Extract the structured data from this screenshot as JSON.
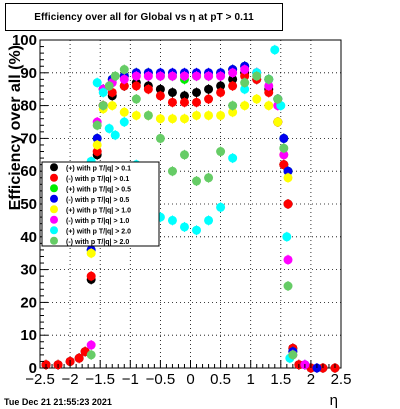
{
  "chart_data": {
    "type": "scatter",
    "title": "Efficiency over all for Global vs   η at pT > 0.11",
    "xlabel": "η",
    "ylabel": "Efficiency over all (%)",
    "xlim": [
      -2.5,
      2.5
    ],
    "ylim": [
      0,
      100
    ],
    "x_ticks": [
      -2.5,
      -2,
      -1.5,
      -1,
      -0.5,
      0,
      0.5,
      1,
      1.5,
      2,
      2.5
    ],
    "x_tick_labels": [
      "−2.5",
      "−2",
      "−1.5",
      "−1",
      "−0.5",
      "0",
      "0.5",
      "1",
      "1.5",
      "2",
      "2.5"
    ],
    "y_ticks": [
      0,
      10,
      20,
      30,
      40,
      50,
      60,
      70,
      80,
      90,
      100
    ],
    "y_tick_labels": [
      "0",
      "10",
      "20",
      "30",
      "40",
      "50",
      "60",
      "70",
      "80",
      "90",
      "100"
    ],
    "grid": true,
    "legend_position": "middle-left",
    "footer": "Tue Dec 21 21:55:23 2021",
    "series": [
      {
        "name": "(+) with p T/|q| > 0.1",
        "color": "#000000",
        "x": [
          -2.4,
          -2.2,
          -2.0,
          -1.85,
          -1.75,
          -1.65,
          -1.55,
          -1.45,
          -1.3,
          -1.1,
          -0.9,
          -0.7,
          -0.5,
          -0.3,
          -0.1,
          0.1,
          0.3,
          0.5,
          0.7,
          0.9,
          1.1,
          1.3,
          1.45,
          1.55,
          1.62,
          1.7,
          1.8,
          2.0,
          2.2,
          2.4
        ],
        "y": [
          1,
          1,
          2,
          3,
          5,
          27,
          65,
          80,
          83,
          86,
          87,
          86,
          85,
          84,
          83,
          84,
          85,
          86,
          88,
          90,
          88,
          85,
          75,
          62,
          50,
          6,
          1,
          0,
          0,
          0
        ]
      },
      {
        "name": "(-) with p T/|q| > 0.1",
        "color": "#ff0000",
        "x": [
          -2.4,
          -2.2,
          -2.0,
          -1.85,
          -1.75,
          -1.65,
          -1.55,
          -1.45,
          -1.3,
          -1.1,
          -0.9,
          -0.7,
          -0.5,
          -0.3,
          -0.1,
          0.1,
          0.3,
          0.5,
          0.7,
          0.9,
          1.1,
          1.3,
          1.45,
          1.55,
          1.62,
          1.7,
          1.8,
          2.0,
          2.2,
          2.4
        ],
        "y": [
          1,
          1,
          2,
          3,
          5,
          28,
          66,
          80,
          84,
          86,
          86,
          85,
          83,
          81,
          81,
          81,
          82,
          84,
          86,
          89,
          88,
          84,
          75,
          62,
          50,
          6,
          1,
          0,
          0,
          0
        ]
      },
      {
        "name": "(+) with p T/|q| > 0.5",
        "color": "#00ee00",
        "x": [
          -1.65,
          -1.55,
          -1.45,
          -1.3,
          -1.1,
          -0.9,
          -0.7,
          -0.5,
          -0.3,
          -0.1,
          0.1,
          0.3,
          0.5,
          0.7,
          0.9,
          1.1,
          1.3,
          1.45,
          1.55,
          1.62,
          1.7
        ],
        "y": [
          36,
          70,
          85,
          88,
          89,
          90,
          90,
          89,
          89,
          88,
          89,
          89,
          90,
          91,
          92,
          90,
          88,
          82,
          70,
          60,
          5
        ]
      },
      {
        "name": "(-) with p T/|q| > 0.5",
        "color": "#0000ee",
        "x": [
          -1.65,
          -1.55,
          -1.45,
          -1.3,
          -1.1,
          -0.9,
          -0.7,
          -0.5,
          -0.3,
          -0.1,
          0.1,
          0.3,
          0.5,
          0.7,
          0.9,
          1.1,
          1.3,
          1.45,
          1.55,
          1.62,
          1.7,
          1.9,
          2.1
        ],
        "y": [
          36,
          70,
          85,
          88,
          89,
          90,
          90,
          90,
          90,
          90,
          90,
          90,
          90,
          91,
          92,
          90,
          88,
          82,
          70,
          60,
          5,
          1,
          0
        ]
      },
      {
        "name": "(+) with p T/|q| > 1.0",
        "color": "#ffff00",
        "x": [
          -1.65,
          -1.55,
          -1.45,
          -1.3,
          -1.1,
          -0.9,
          -0.7,
          -0.5,
          -0.3,
          -0.1,
          0.1,
          0.3,
          0.5,
          0.7,
          0.9,
          1.1,
          1.3,
          1.45,
          1.55,
          1.62,
          1.7
        ],
        "y": [
          35,
          68,
          79,
          80,
          78,
          77,
          77,
          76,
          76,
          76,
          77,
          77,
          77,
          78,
          80,
          82,
          80,
          75,
          65,
          58,
          4
        ]
      },
      {
        "name": "(-) with p T/|q| > 1.0",
        "color": "#ff00ff",
        "x": [
          -1.65,
          -1.55,
          -1.45,
          -1.3,
          -1.1,
          -0.9,
          -0.7,
          -0.5,
          -0.3,
          -0.1,
          0.1,
          0.3,
          0.5,
          0.7,
          0.9,
          1.1,
          1.3,
          1.45,
          1.55,
          1.62,
          1.7,
          1.9
        ],
        "y": [
          7,
          75,
          85,
          87,
          88,
          89,
          89,
          89,
          89,
          89,
          89,
          89,
          89,
          90,
          91,
          90,
          86,
          80,
          65,
          33,
          4,
          1
        ]
      },
      {
        "name": "(+) with p T/|q| > 2.0",
        "color": "#00ffff",
        "x": [
          -1.65,
          -1.55,
          -1.45,
          -1.35,
          -1.25,
          -1.1,
          -0.9,
          -0.7,
          -0.5,
          -0.3,
          -0.1,
          0.1,
          0.3,
          0.5,
          0.7,
          0.9,
          1.1,
          1.3,
          1.4,
          1.5,
          1.6,
          1.65
        ],
        "y": [
          63,
          87,
          84,
          73,
          71,
          75,
          62,
          56,
          46,
          45,
          43,
          42,
          45,
          49,
          64,
          85,
          90,
          88,
          97,
          80,
          40,
          3
        ]
      },
      {
        "name": "(-) with p T/|q| > 2.0",
        "color": "#66cc66",
        "x": [
          -1.65,
          -1.55,
          -1.45,
          -1.35,
          -1.25,
          -1.1,
          -0.9,
          -0.7,
          -0.5,
          -0.3,
          -0.1,
          0.1,
          0.3,
          0.5,
          0.7,
          0.9,
          1.1,
          1.3,
          1.45,
          1.55,
          1.62,
          1.7
        ],
        "y": [
          4,
          74,
          80,
          86,
          89,
          91,
          82,
          77,
          70,
          60,
          65,
          57,
          58,
          66,
          80,
          87,
          89,
          88,
          82,
          67,
          25,
          4
        ]
      }
    ]
  }
}
